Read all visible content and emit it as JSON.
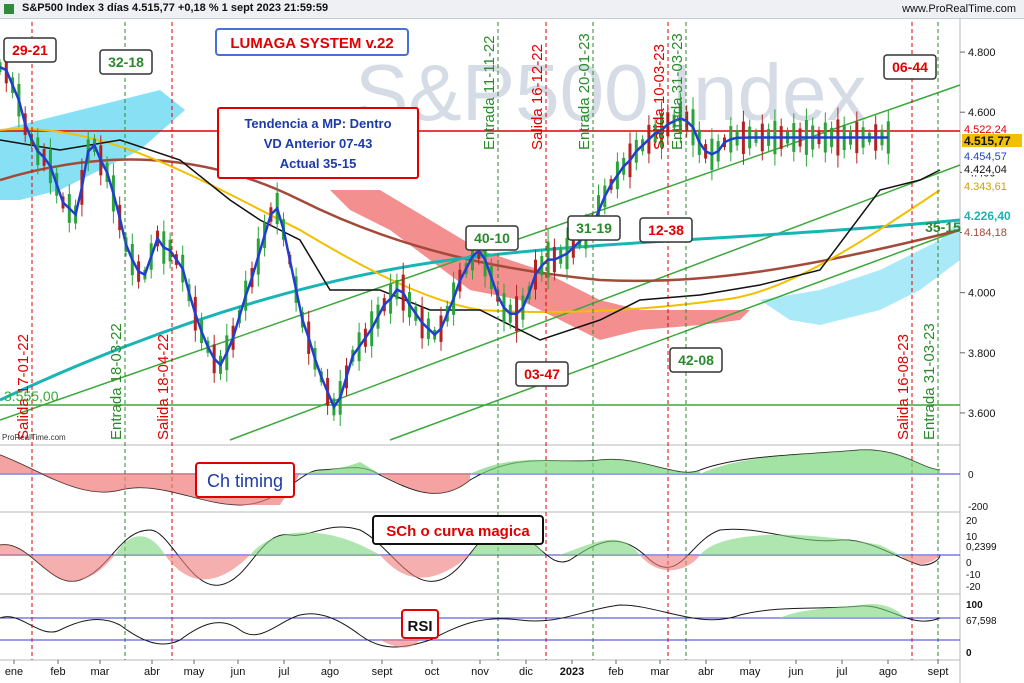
{
  "header": {
    "title": "S&P500 Index 3 días 4.515,77 +0,18 % 1 sept 2023 21:59:59",
    "site": "www.ProRealTime.com"
  },
  "watermark": "S&P500 Index",
  "source_label": "ProRealTime.com",
  "colors": {
    "price": "#1f3fd0",
    "candle_up": "#2aa33a",
    "ichimoku_up": "#55d3f0",
    "ichimoku_down": "#f06060",
    "ma_black": "#111111",
    "ma_yellow": "#f2c000",
    "ma_brown": "#a34a3a",
    "ma_cyan": "#19b5b5",
    "channel": "#3aa83a",
    "resistance": "#e00000",
    "support": "#3aa83a"
  },
  "chart_data": [
    {
      "type": "line",
      "title": "S&P500 Index 3 días",
      "x_ticks": [
        "ene",
        "feb",
        "mar",
        "abr",
        "may",
        "jun",
        "jul",
        "ago",
        "sept",
        "oct",
        "nov",
        "dic",
        "2023",
        "feb",
        "mar",
        "abr",
        "may",
        "jun",
        "jul",
        "ago",
        "sept"
      ],
      "y_ticks": [
        3600,
        3800,
        4000,
        4200,
        4400,
        4600,
        4800
      ],
      "ylim": [
        3510,
        4900
      ],
      "series": [
        {
          "name": "price",
          "x": [
            0,
            2,
            4,
            6,
            8,
            10,
            12,
            14,
            16,
            18,
            20,
            22,
            24,
            26,
            28,
            30,
            32,
            34,
            36,
            38,
            40,
            42,
            44,
            46,
            48,
            50,
            52,
            54,
            56,
            58,
            60,
            62,
            64,
            66,
            68,
            70,
            72,
            74,
            76,
            78,
            80,
            82,
            84,
            86,
            88,
            90,
            92,
            94,
            96,
            98,
            100,
            102,
            104,
            106,
            108,
            110,
            112,
            114,
            116,
            118,
            120,
            122,
            124,
            126,
            128,
            130,
            132,
            134,
            136,
            138,
            140,
            142,
            144,
            146,
            148,
            150,
            152,
            154,
            156,
            158,
            160,
            162,
            164,
            166,
            168,
            170,
            172,
            174,
            176,
            178,
            180,
            182,
            184,
            186,
            188,
            190,
            192,
            194,
            196,
            198,
            200,
            202,
            204,
            206,
            208,
            210,
            212,
            214,
            216,
            218,
            220,
            222,
            224,
            226,
            228,
            230,
            232,
            234,
            236,
            238,
            240,
            242,
            244,
            246,
            248,
            250,
            252,
            254,
            256,
            258,
            260,
            262,
            264,
            266,
            268,
            270,
            272,
            274,
            276,
            278,
            280,
            282,
            284,
            286,
            288,
            290,
            292,
            294,
            296,
            298,
            300
          ],
          "y": [
            4750,
            4740,
            4690,
            4640,
            4560,
            4510,
            4470,
            4450,
            4420,
            4360,
            4300,
            4280,
            4260,
            4350,
            4470,
            4490,
            4440,
            4400,
            4330,
            4250,
            4160,
            4110,
            4070,
            4060,
            4120,
            4180,
            4150,
            4140,
            4110,
            4080,
            4000,
            3930,
            3870,
            3820,
            3780,
            3760,
            3800,
            3850,
            3920,
            3990,
            4050,
            4120,
            4190,
            4260,
            4280,
            4210,
            4110,
            4010,
            3910,
            3850,
            3780,
            3720,
            3670,
            3620,
            3650,
            3720,
            3790,
            3820,
            3850,
            3880,
            3920,
            3960,
            3980,
            4010,
            4000,
            3960,
            3930,
            3900,
            3880,
            3860,
            3880,
            3930,
            3980,
            4040,
            4080,
            4120,
            4140,
            4110,
            4050,
            3990,
            3950,
            3930,
            3930,
            3950,
            4000,
            4060,
            4090,
            4110,
            4110,
            4120,
            4130,
            4150,
            4170,
            4190,
            4220,
            4270,
            4320,
            4360,
            4390,
            4420,
            4440,
            4470,
            4490,
            4510,
            4530,
            4540,
            4560,
            4570,
            4580,
            4570,
            4550,
            4500,
            4470,
            4460,
            4470,
            4500,
            4510,
            4515,
            4515,
            4516,
            4516,
            4516,
            4516,
            4516,
            4516,
            4516,
            4516,
            4516,
            4516,
            4516,
            4516,
            4516,
            4516,
            4516,
            4516,
            4516,
            4516,
            4516,
            4516,
            4516,
            4516,
            4516,
            4516,
            4516,
            4516,
            4516,
            4516,
            4516,
            4516,
            4516,
            4516
          ]
        }
      ],
      "last_price": "4.515,77",
      "axis_labels": [
        "4.522,24",
        "4.515,77",
        "4.454,57",
        "4.424,04",
        "4.343,61",
        "4.226,40",
        "4.184,18"
      ],
      "support_label": "3.555,00",
      "annotations": [
        {
          "kind": "box",
          "text": "29-21"
        },
        {
          "kind": "box",
          "text": "32-18"
        },
        {
          "kind": "box",
          "text": "40-10"
        },
        {
          "kind": "box",
          "text": "31-19"
        },
        {
          "kind": "box",
          "text": "12-38"
        },
        {
          "kind": "box",
          "text": "03-47"
        },
        {
          "kind": "box",
          "text": "42-08"
        },
        {
          "kind": "box",
          "text": "06-44"
        },
        {
          "kind": "label",
          "text": "35-15"
        }
      ],
      "vertical_signals": [
        {
          "text": "Salida 17-01-22",
          "color": "red"
        },
        {
          "text": "Entrada 18-03-22",
          "color": "green"
        },
        {
          "text": "Salida 18-04-22",
          "color": "red"
        },
        {
          "text": "Entrada 11-11-22",
          "color": "green"
        },
        {
          "text": "Salida 16-12-22",
          "color": "red"
        },
        {
          "text": "Entrada 20-01-23",
          "color": "green"
        },
        {
          "text": "Salida 10-03-23",
          "color": "red"
        },
        {
          "text": "Entrada 31-03-23",
          "color": "green"
        },
        {
          "text": "Salida 16-08-23",
          "color": "red"
        },
        {
          "text": "Entrada 31-03-23",
          "color": "green"
        }
      ],
      "system_box": "LUMAGA SYSTEM v.22",
      "trend_box": [
        "Tendencia a MP: Dentro",
        "VD Anterior 07-43",
        "Actual 35-15"
      ]
    },
    {
      "type": "area",
      "title": "Ch timing",
      "y_ticks": [
        "0",
        "-200"
      ]
    },
    {
      "type": "area",
      "title": "SCh o curva magica",
      "y_ticks": [
        "20",
        "10",
        "0,2399",
        "0",
        "-10",
        "-20"
      ]
    },
    {
      "type": "line",
      "title": "RSI",
      "y_ticks": [
        "100",
        "67,598",
        "0"
      ]
    }
  ]
}
